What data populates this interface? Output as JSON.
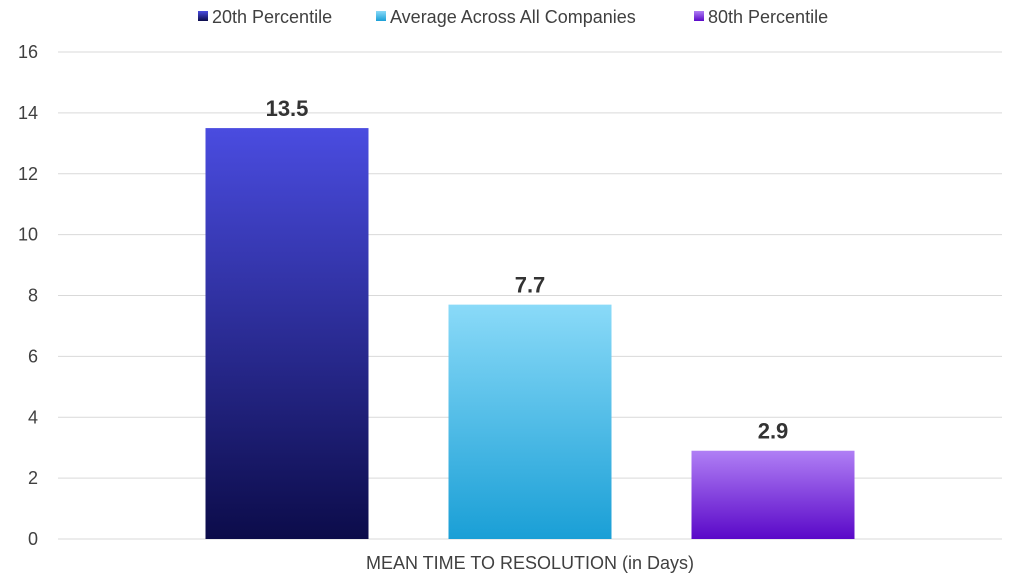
{
  "chart_data": {
    "type": "bar",
    "categories": [
      "MEAN TIME TO RESOLUTION (in Days)"
    ],
    "series": [
      {
        "name": "20th Percentile",
        "values": [
          13.5
        ],
        "color_top": "#4a4ce0",
        "color_bottom": "#0c0c4a"
      },
      {
        "name": "Average Across All Companies",
        "values": [
          7.7
        ],
        "color_top": "#8adaf8",
        "color_bottom": "#1a9fd6"
      },
      {
        "name": "80th Percentile",
        "values": [
          2.9
        ],
        "color_top": "#b07ff5",
        "color_bottom": "#5a08c8"
      }
    ],
    "data_labels": [
      "13.5",
      "7.7",
      "2.9"
    ],
    "y_ticks": [
      "0",
      "2",
      "4",
      "6",
      "8",
      "10",
      "12",
      "14",
      "16"
    ],
    "ylim": [
      0,
      16
    ],
    "grid": true,
    "legend_position": "top-center",
    "title": "",
    "xlabel": "",
    "ylabel": ""
  }
}
